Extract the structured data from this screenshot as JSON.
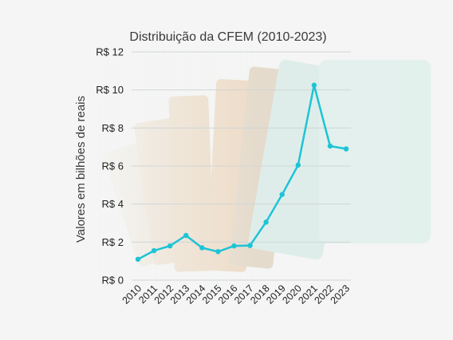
{
  "chart_data": {
    "type": "line",
    "title": "Distribuição da CFEM (2010-2023)",
    "xlabel": "",
    "ylabel": "Valores em bilhões de reais",
    "categories": [
      "2010",
      "2011",
      "2012",
      "2013",
      "2014",
      "2015",
      "2016",
      "2017",
      "2018",
      "2019",
      "2020",
      "2021",
      "2022",
      "2023"
    ],
    "series": [
      {
        "values": [
          1.1,
          1.55,
          1.8,
          2.35,
          1.7,
          1.5,
          1.8,
          1.82,
          3.05,
          4.5,
          6.05,
          10.25,
          7.05,
          6.9
        ]
      }
    ],
    "yticks": [
      "R$ 0",
      "R$ 2",
      "R$ 4",
      "R$ 6",
      "R$ 8",
      "R$ 10",
      "R$ 12"
    ],
    "ylim": [
      0,
      12
    ],
    "grid": true,
    "legend": "none",
    "colors": {
      "line": "#1cc4d6",
      "grid": "#cfd6d6",
      "background": "#f4f5f4",
      "banknote_overlay": "#e7d5b8"
    }
  }
}
